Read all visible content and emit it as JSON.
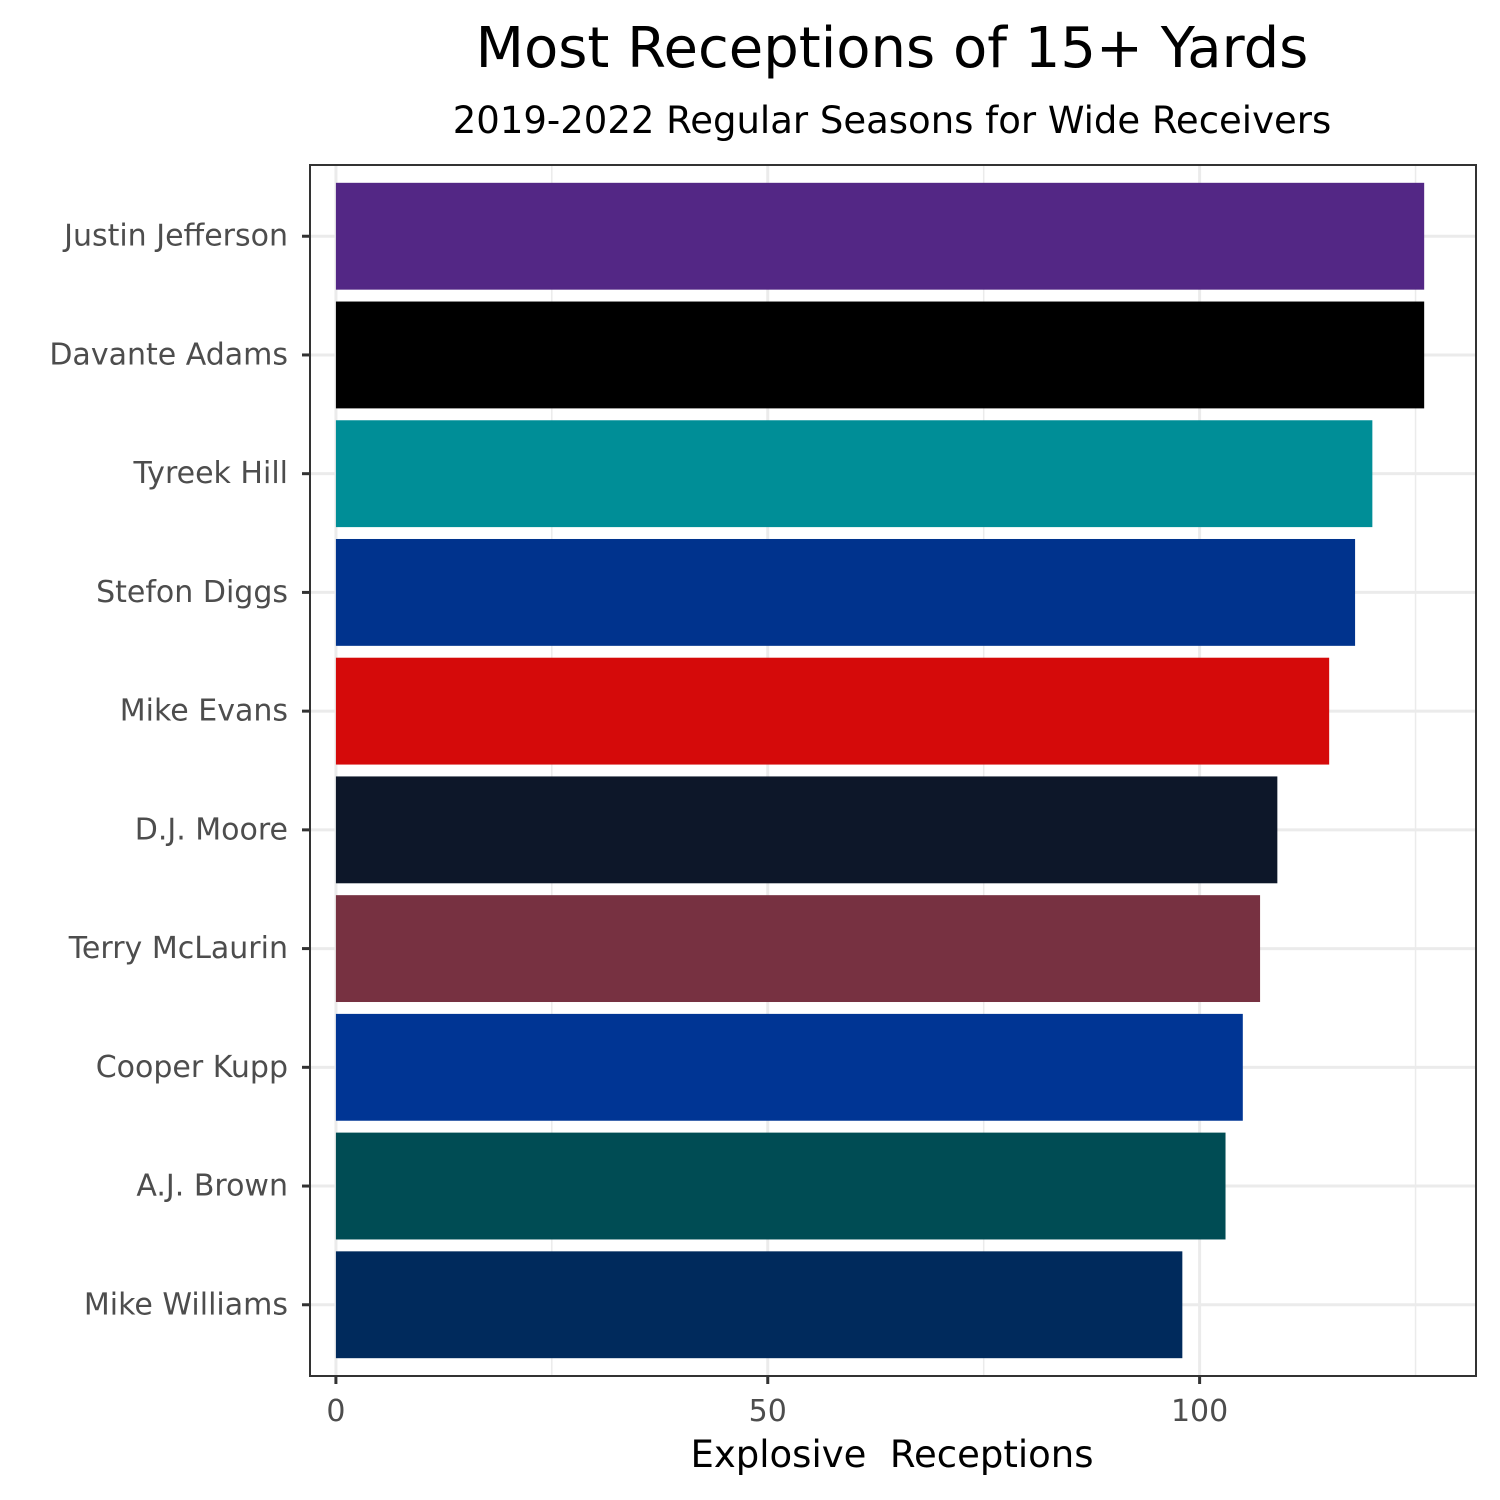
{
  "chart_data": {
    "type": "bar",
    "orientation": "horizontal",
    "title": "Most Receptions of 15+ Yards",
    "subtitle": "2019-2022 Regular Seasons for Wide Receivers",
    "xlabel": "Explosive  Receptions",
    "ylabel": "",
    "xlim": [
      -3,
      132
    ],
    "xticks": [
      0,
      50,
      100
    ],
    "grid": true,
    "legend": "none",
    "categories": [
      "Justin Jefferson",
      "Davante Adams",
      "Tyreek Hill",
      "Stefon Diggs",
      "Mike Evans",
      "D.J. Moore",
      "Terry McLaurin",
      "Cooper Kupp",
      "A.J. Brown",
      "Mike Williams"
    ],
    "values": [
      126,
      126,
      120,
      118,
      115,
      109,
      107,
      105,
      103,
      98
    ],
    "colors": [
      "#532785",
      "#000000",
      "#008e97",
      "#00338d",
      "#d50a0a",
      "#0d1729",
      "#773141",
      "#003594",
      "#004c54",
      "#002a5c"
    ]
  }
}
